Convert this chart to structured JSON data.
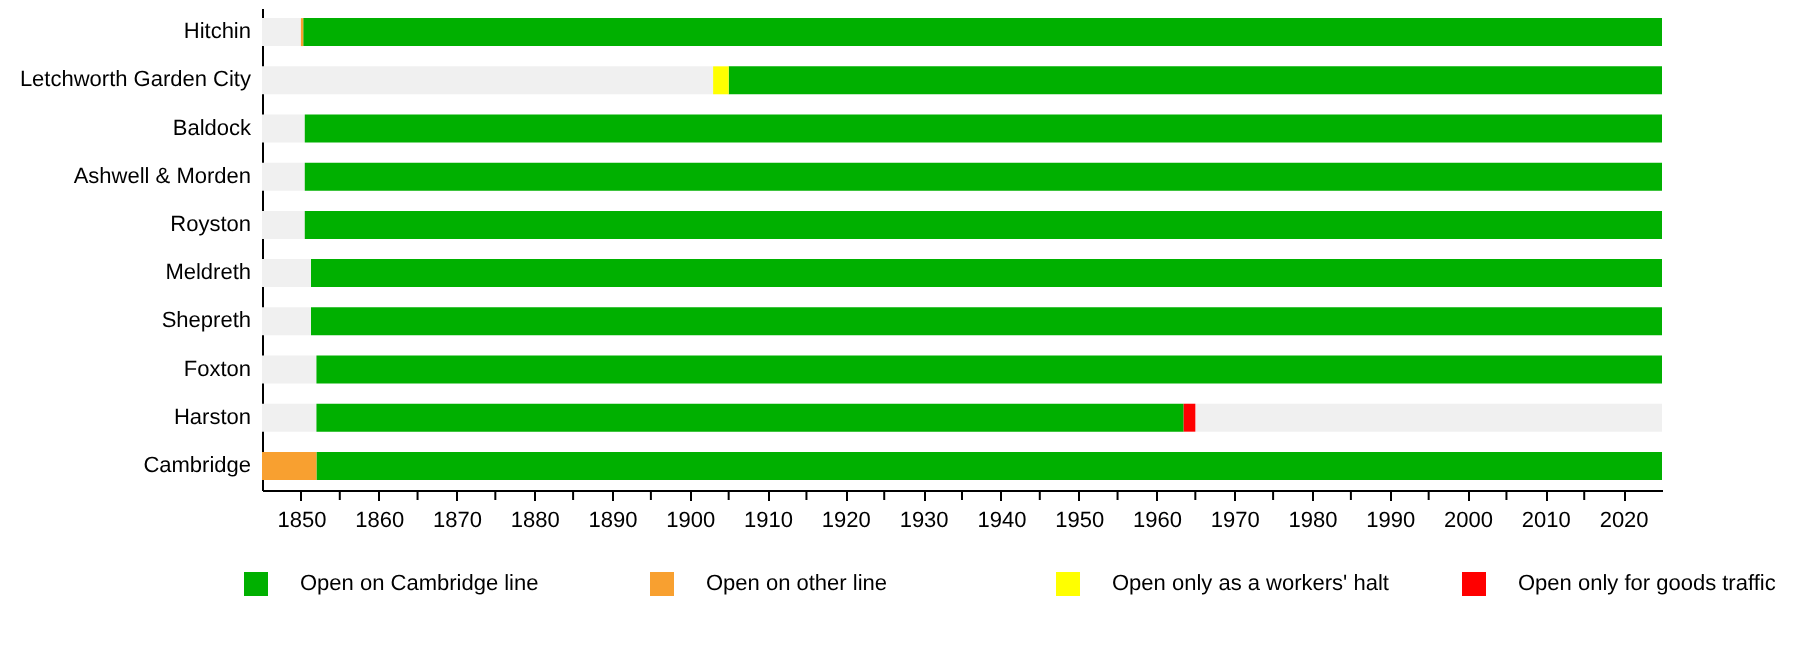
{
  "chart_data": {
    "type": "bar",
    "orientation": "horizontal",
    "legend": "bottom",
    "grid": false,
    "categories": [
      "Hitchin",
      "Letchworth Garden City",
      "Baldock",
      "Ashwell & Morden",
      "Royston",
      "Meldreth",
      "Shepreth",
      "Foxton",
      "Harston",
      "Cambridge"
    ],
    "xlim": [
      1845,
      2025
    ],
    "xticks": [
      1850,
      {
        "value": 1855,
        "label": null
      },
      1860,
      {
        "value": 1865,
        "label": null
      },
      1870,
      {
        "value": 1875,
        "label": null
      },
      1880,
      {
        "value": 1885,
        "label": null
      },
      1890,
      {
        "value": 1895,
        "label": null
      },
      1900,
      {
        "value": 1905,
        "label": null
      },
      1910,
      {
        "value": 1915,
        "label": null
      },
      1920,
      {
        "value": 1925,
        "label": null
      },
      1930,
      {
        "value": 1935,
        "label": null
      },
      1940,
      {
        "value": 1945,
        "label": null
      },
      1950,
      {
        "value": 1955,
        "label": null
      },
      1960,
      {
        "value": 1965,
        "label": null
      },
      1970,
      {
        "value": 1975,
        "label": null
      },
      1980,
      {
        "value": 1985,
        "label": null
      },
      1990,
      {
        "value": 1995,
        "label": null
      },
      2000,
      {
        "value": 2005,
        "label": null
      },
      2010,
      {
        "value": 2015,
        "label": null
      },
      2020
    ],
    "series": [
      {
        "color": "#f0f0f0",
        "base": [
          1845,
          1845,
          1845,
          1845,
          1845,
          1845,
          1845,
          1845,
          1845,
          null
        ],
        "values": [
          5,
          58,
          5.5,
          5.5,
          5.5,
          6.3,
          6.3,
          7,
          7,
          null
        ]
      },
      {
        "name": "Open on Cambridge line",
        "color": "#00b000",
        "base": [
          1850.3,
          1905,
          1850.5,
          1850.5,
          1850.5,
          1851.3,
          1851.3,
          1852,
          1852,
          1852
        ],
        "values": [
          174.7,
          120,
          174.5,
          174.5,
          174.5,
          173.7,
          173.7,
          173,
          111.5,
          173
        ]
      },
      {
        "name": "Open on other line",
        "color": "#f8a030",
        "base": [
          1850,
          null,
          null,
          null,
          null,
          null,
          null,
          null,
          null,
          1845
        ],
        "values": [
          0.3,
          null,
          null,
          null,
          null,
          null,
          null,
          null,
          null,
          7
        ]
      },
      {
        "name": "Open only as a workers' halt",
        "color": "#ffff00",
        "base": [
          null,
          1903,
          null,
          null,
          null,
          null,
          null,
          null,
          null,
          null
        ],
        "values": [
          null,
          2,
          null,
          null,
          null,
          null,
          null,
          null,
          null,
          null
        ]
      },
      {
        "name": "Open only for goods traffic",
        "color": "#ff0000",
        "base": [
          null,
          null,
          null,
          null,
          null,
          null,
          null,
          null,
          1963.5,
          null
        ],
        "values": [
          null,
          null,
          null,
          null,
          null,
          null,
          null,
          null,
          1.5,
          null
        ]
      },
      {
        "color": "#f0f0f0",
        "base": [
          null,
          null,
          null,
          null,
          null,
          null,
          null,
          null,
          1965,
          null
        ],
        "values": [
          null,
          null,
          null,
          null,
          null,
          null,
          null,
          null,
          60,
          null
        ]
      }
    ]
  }
}
